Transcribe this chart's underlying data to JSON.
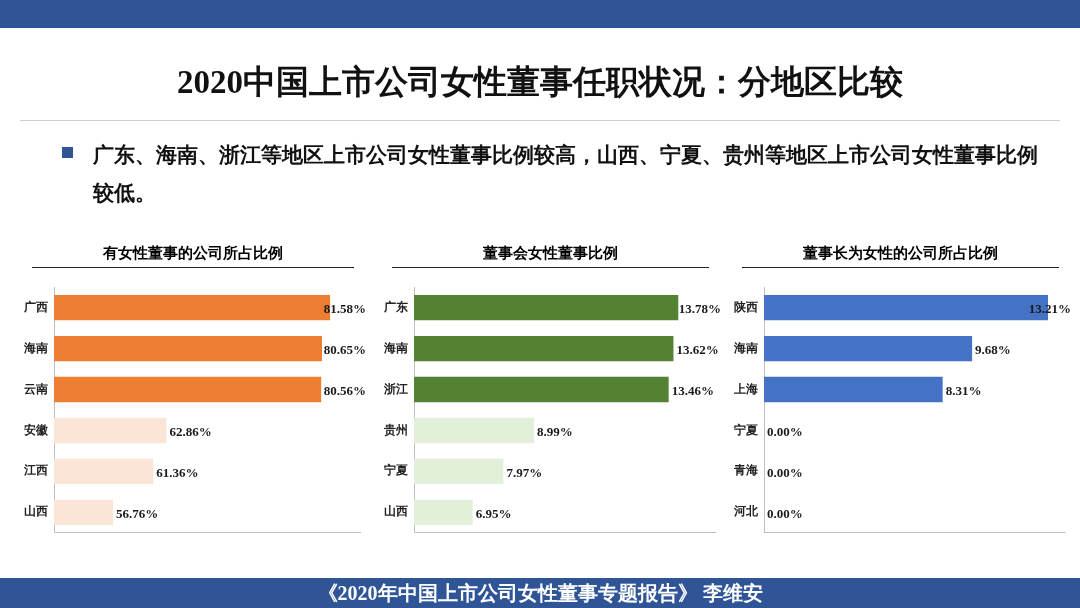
{
  "chart_data": [
    {
      "type": "other",
      "title": "2020中国上市公司女性董事任职状况：分地区比较",
      "annotations": [
        "广东、海南、浙江等地区上市公司女性董事比例较高，山西、宁夏、贵州等地区上市公司女性董事比例较低。",
        "《2020年中国上市公司女性董事专题报告》 李维安"
      ]
    },
    {
      "type": "bar",
      "orientation": "horizontal",
      "title": "有女性董事的公司所占比例",
      "categories": [
        "广西",
        "海南",
        "云南",
        "安徽",
        "江西",
        "山西"
      ],
      "values": [
        81.58,
        80.65,
        80.56,
        62.86,
        61.36,
        56.76
      ],
      "value_labels": [
        "81.58%",
        "80.65%",
        "80.56%",
        "62.86%",
        "61.36%",
        "56.76%"
      ],
      "colors": [
        "#ed7d31",
        "#ed7d31",
        "#ed7d31",
        "#fbe5d6",
        "#fbe5d6",
        "#fbe5d6"
      ],
      "xlim": [
        50,
        85
      ],
      "tick_labels": "y",
      "grid": false,
      "legend": false
    },
    {
      "type": "bar",
      "orientation": "horizontal",
      "title": "董事会女性董事比例",
      "categories": [
        "广东",
        "海南",
        "浙江",
        "贵州",
        "宁夏",
        "山西"
      ],
      "values": [
        13.78,
        13.62,
        13.46,
        8.99,
        7.97,
        6.95
      ],
      "value_labels": [
        "13.78%",
        "13.62%",
        "13.46%",
        "8.99%",
        "7.97%",
        "6.95%"
      ],
      "colors": [
        "#548235",
        "#548235",
        "#548235",
        "#e2f0d9",
        "#e2f0d9",
        "#e2f0d9"
      ],
      "xlim": [
        5,
        15
      ],
      "tick_labels": "y",
      "grid": false,
      "legend": false
    },
    {
      "type": "bar",
      "orientation": "horizontal",
      "title": "董事长为女性的公司所占比例",
      "categories": [
        "陕西",
        "海南",
        "上海",
        "宁夏",
        "青海",
        "河北"
      ],
      "values": [
        13.21,
        9.68,
        8.31,
        0,
        0,
        0
      ],
      "value_labels": [
        "13.21%",
        "9.68%",
        "8.31%",
        "0.00%",
        "0.00%",
        "0.00%"
      ],
      "colors": [
        "#4472c4",
        "#4472c4",
        "#4472c4",
        "#4472c4",
        "#4472c4",
        "#4472c4"
      ],
      "xlim": [
        0,
        14
      ],
      "tick_labels": "y",
      "grid": false,
      "legend": false
    }
  ]
}
